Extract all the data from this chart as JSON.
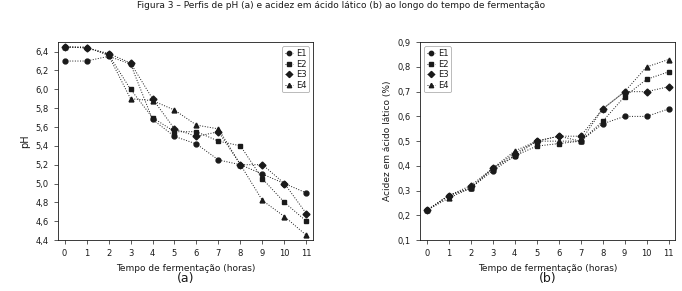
{
  "title": "Figura 3 – Perfis de pH (a) e acidez em ácido lático (b) ao longo do tempo de fermentação",
  "time": [
    0,
    1,
    2,
    3,
    4,
    5,
    6,
    7,
    8,
    9,
    10,
    11
  ],
  "ph_E1": [
    6.3,
    6.3,
    6.35,
    6.27,
    5.68,
    5.5,
    5.42,
    5.25,
    5.2,
    5.1,
    5.0,
    4.9
  ],
  "ph_E2": [
    6.45,
    6.44,
    6.37,
    6.0,
    5.7,
    5.55,
    5.55,
    5.45,
    5.4,
    5.05,
    4.8,
    4.6
  ],
  "ph_E3": [
    6.45,
    6.44,
    6.38,
    6.28,
    5.9,
    5.58,
    5.5,
    5.55,
    5.2,
    5.2,
    5.0,
    4.68
  ],
  "ph_E4": [
    6.45,
    6.45,
    6.36,
    5.9,
    5.88,
    5.78,
    5.62,
    5.58,
    5.2,
    4.82,
    4.65,
    4.45
  ],
  "acid_E1": [
    0.22,
    0.28,
    0.31,
    0.38,
    0.44,
    0.5,
    0.52,
    0.5,
    0.57,
    0.6,
    0.6,
    0.63
  ],
  "acid_E2": [
    0.22,
    0.28,
    0.31,
    0.39,
    0.44,
    0.48,
    0.49,
    0.5,
    0.58,
    0.68,
    0.75,
    0.78
  ],
  "acid_E3": [
    0.22,
    0.28,
    0.32,
    0.39,
    0.45,
    0.5,
    0.52,
    0.52,
    0.63,
    0.7,
    0.7,
    0.72
  ],
  "acid_E4": [
    0.22,
    0.27,
    0.31,
    0.39,
    0.46,
    0.5,
    0.5,
    0.5,
    0.63,
    0.7,
    0.8,
    0.83
  ],
  "xlabel": "Tempo de fermentação (horas)",
  "ylabel_ph": "pH",
  "ylabel_acid": "Acidez em ácido lático (%)",
  "ph_ylim": [
    4.4,
    6.5
  ],
  "ph_yticks": [
    4.4,
    4.6,
    4.8,
    5.0,
    5.2,
    5.4,
    5.6,
    5.8,
    6.0,
    6.2,
    6.4
  ],
  "acid_ylim": [
    0.1,
    0.9
  ],
  "acid_yticks": [
    0.1,
    0.2,
    0.3,
    0.4,
    0.5,
    0.6,
    0.7,
    0.8,
    0.9
  ],
  "label_a": "(a)",
  "label_b": "(b)",
  "legend_labels": [
    "E1",
    "E2",
    "E3",
    "E4"
  ],
  "color": "#1a1a1a",
  "bg_color": "#ffffff"
}
